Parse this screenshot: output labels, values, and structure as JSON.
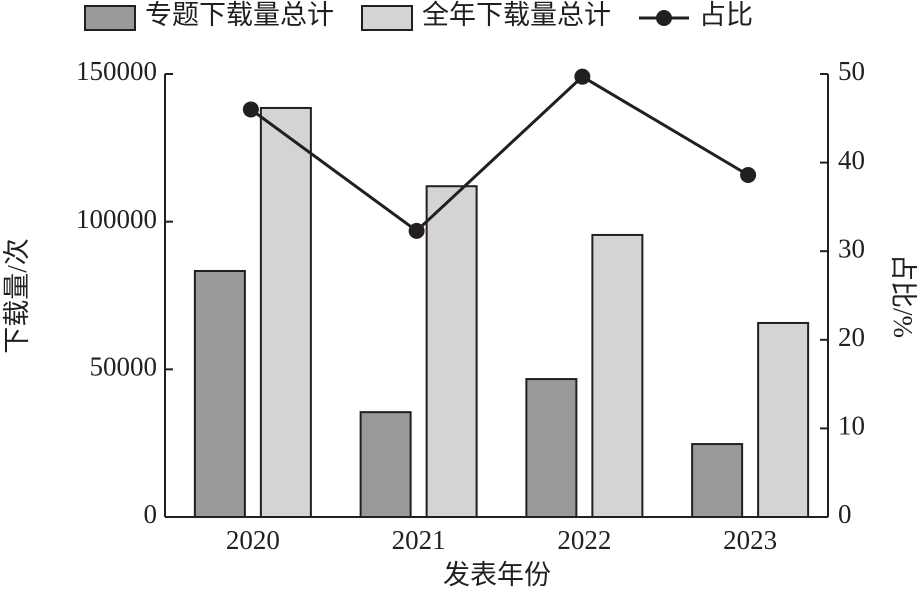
{
  "chart_data": {
    "type": "bar_line",
    "categories": [
      "2020",
      "2021",
      "2022",
      "2023"
    ],
    "series": [
      {
        "name": "专题下载量总计",
        "color": "#999999",
        "values": [
          83300,
          35500,
          46700,
          24700
        ]
      },
      {
        "name": "全年下载量总计",
        "color": "#d4d4d4",
        "values": [
          138500,
          112000,
          95500,
          65700
        ]
      },
      {
        "name": "占比",
        "color": "#231f20",
        "axis": "y2",
        "values": [
          46.0,
          32.3,
          49.7,
          38.6
        ]
      }
    ],
    "x_label": "发表年份",
    "y_label": "下载量/次",
    "y2_label": "占比/%",
    "ylim": [
      0,
      150000
    ],
    "yticks": [
      0,
      50000,
      100000,
      150000
    ],
    "y2lim": [
      0,
      50
    ],
    "y2ticks": [
      0,
      10,
      20,
      30,
      40,
      50
    ],
    "legend": "top"
  }
}
